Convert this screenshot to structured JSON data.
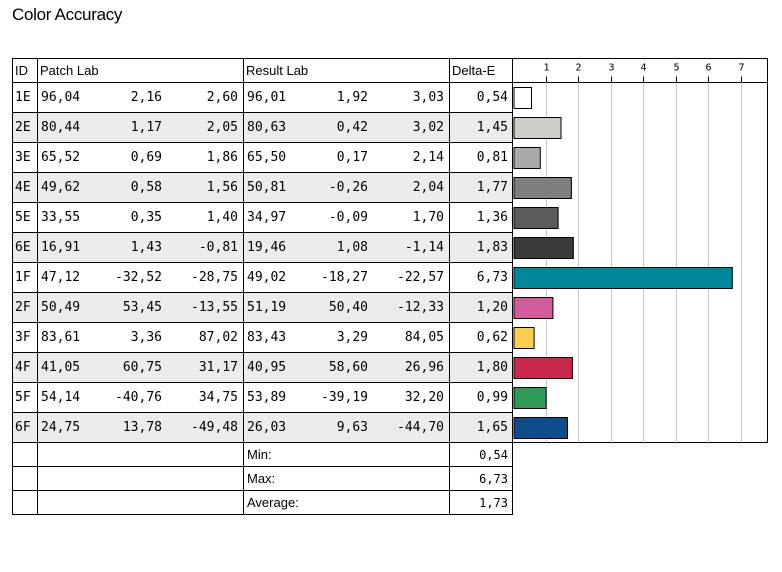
{
  "title": "Color Accuracy",
  "headers": {
    "id": "ID",
    "patch": "Patch Lab",
    "result": "Result Lab",
    "delta": "Delta-E"
  },
  "rows": [
    {
      "id": "1E",
      "patch": [
        "96,04",
        "2,16",
        "2,60"
      ],
      "result": [
        "96,01",
        "1,92",
        "3,03"
      ],
      "delta": "0,54"
    },
    {
      "id": "2E",
      "patch": [
        "80,44",
        "1,17",
        "2,05"
      ],
      "result": [
        "80,63",
        "0,42",
        "3,02"
      ],
      "delta": "1,45"
    },
    {
      "id": "3E",
      "patch": [
        "65,52",
        "0,69",
        "1,86"
      ],
      "result": [
        "65,50",
        "0,17",
        "2,14"
      ],
      "delta": "0,81"
    },
    {
      "id": "4E",
      "patch": [
        "49,62",
        "0,58",
        "1,56"
      ],
      "result": [
        "50,81",
        "-0,26",
        "2,04"
      ],
      "delta": "1,77"
    },
    {
      "id": "5E",
      "patch": [
        "33,55",
        "0,35",
        "1,40"
      ],
      "result": [
        "34,97",
        "-0,09",
        "1,70"
      ],
      "delta": "1,36"
    },
    {
      "id": "6E",
      "patch": [
        "16,91",
        "1,43",
        "-0,81"
      ],
      "result": [
        "19,46",
        "1,08",
        "-1,14"
      ],
      "delta": "1,83"
    },
    {
      "id": "1F",
      "patch": [
        "47,12",
        "-32,52",
        "-28,75"
      ],
      "result": [
        "49,02",
        "-18,27",
        "-22,57"
      ],
      "delta": "6,73"
    },
    {
      "id": "2F",
      "patch": [
        "50,49",
        "53,45",
        "-13,55"
      ],
      "result": [
        "51,19",
        "50,40",
        "-12,33"
      ],
      "delta": "1,20"
    },
    {
      "id": "3F",
      "patch": [
        "83,61",
        "3,36",
        "87,02"
      ],
      "result": [
        "83,43",
        "3,29",
        "84,05"
      ],
      "delta": "0,62"
    },
    {
      "id": "4F",
      "patch": [
        "41,05",
        "60,75",
        "31,17"
      ],
      "result": [
        "40,95",
        "58,60",
        "26,96"
      ],
      "delta": "1,80"
    },
    {
      "id": "5F",
      "patch": [
        "54,14",
        "-40,76",
        "34,75"
      ],
      "result": [
        "53,89",
        "-39,19",
        "32,20"
      ],
      "delta": "0,99"
    },
    {
      "id": "6F",
      "patch": [
        "24,75",
        "13,78",
        "-49,48"
      ],
      "result": [
        "26,03",
        "9,63",
        "-44,70"
      ],
      "delta": "1,65"
    }
  ],
  "summary": [
    {
      "label": "Min:",
      "value": "0,54"
    },
    {
      "label": "Max:",
      "value": "6,73"
    },
    {
      "label": "Average:",
      "value": "1,73"
    }
  ],
  "chart_data": {
    "type": "bar",
    "orientation": "horizontal",
    "categories": [
      "1E",
      "2E",
      "3E",
      "4E",
      "5E",
      "6E",
      "1F",
      "2F",
      "3F",
      "4F",
      "5F",
      "6F"
    ],
    "values": [
      0.54,
      1.45,
      0.81,
      1.77,
      1.36,
      1.83,
      6.73,
      1.2,
      0.62,
      1.8,
      0.99,
      1.65
    ],
    "colors": [
      "#ffffff",
      "#cfcdc8",
      "#a9a9a7",
      "#7e7e7c",
      "#5b5b5b",
      "#3a3a3b",
      "#00879b",
      "#d25b9b",
      "#f8cf4c",
      "#c8294a",
      "#2f9a58",
      "#0e4d8a"
    ],
    "xlim": [
      0,
      7.8
    ],
    "xticks": [
      "1",
      "2",
      "3",
      "4",
      "5",
      "6",
      "7"
    ],
    "grid": true
  }
}
